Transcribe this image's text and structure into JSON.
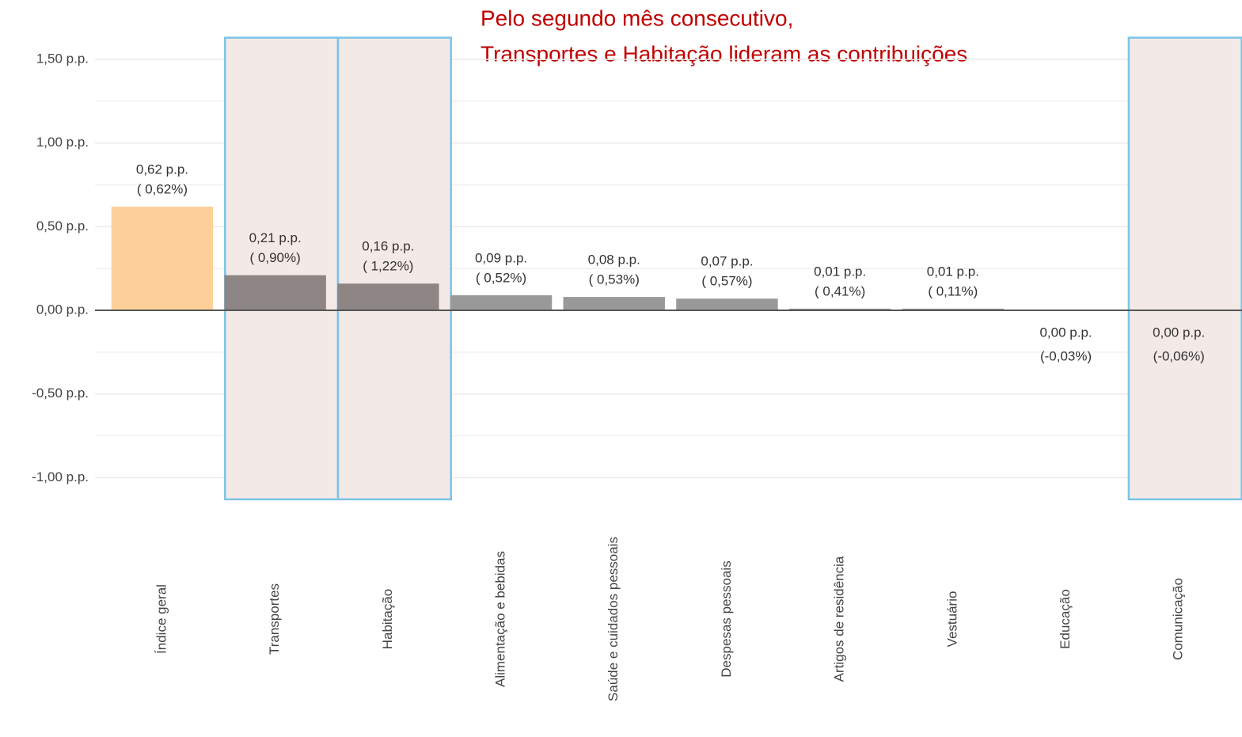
{
  "chart_data": {
    "type": "bar",
    "annotation": [
      "Pelo segundo mês consecutivo,",
      "Transportes e Habitação lideram as contribuições"
    ],
    "categories": [
      "Índice geral",
      "Transportes",
      "Habitação",
      "Alimentação e bebidas",
      "Saúde e cuidados pessoais",
      "Despesas pessoais",
      "Artigos de residência",
      "Vestuário",
      "Educação",
      "Comunicação"
    ],
    "values": [
      0.62,
      0.21,
      0.16,
      0.09,
      0.08,
      0.07,
      0.01,
      0.01,
      0.0,
      0.0
    ],
    "value_labels": [
      "0,62 p.p.",
      "0,21 p.p.",
      "0,16 p.p.",
      "0,09 p.p.",
      "0,08 p.p.",
      "0,07 p.p.",
      "0,01 p.p.",
      "0,01 p.p.",
      "0,00 p.p.",
      "0,00 p.p."
    ],
    "pct_labels": [
      "( 0,62%)",
      "( 0,90%)",
      "( 1,22%)",
      "( 0,52%)",
      "( 0,53%)",
      "( 0,57%)",
      "( 0,41%)",
      "( 0,11%)",
      "(-0,03%)",
      "(-0,06%)"
    ],
    "labels_below": [
      8,
      9
    ],
    "colors": [
      "#fdd09a",
      "#8e8684",
      "#8e8684",
      "#999999",
      "#999999",
      "#999999",
      "#999999",
      "#999999",
      "#999999",
      "#8e8684"
    ],
    "highlight": [
      1,
      2,
      9
    ],
    "ylim": [
      -1.13,
      1.63
    ],
    "yticks": [
      {
        "value": -1,
        "label": "-1,00 p.p."
      },
      {
        "value": -0.5,
        "label": "-0,50 p.p."
      },
      {
        "value": 0,
        "label": "0,00 p.p."
      },
      {
        "value": 0.5,
        "label": "0,50 p.p."
      },
      {
        "value": 1,
        "label": "1,00 p.p."
      },
      {
        "value": 1.5,
        "label": "1,50 p.p."
      }
    ],
    "grid": true
  }
}
